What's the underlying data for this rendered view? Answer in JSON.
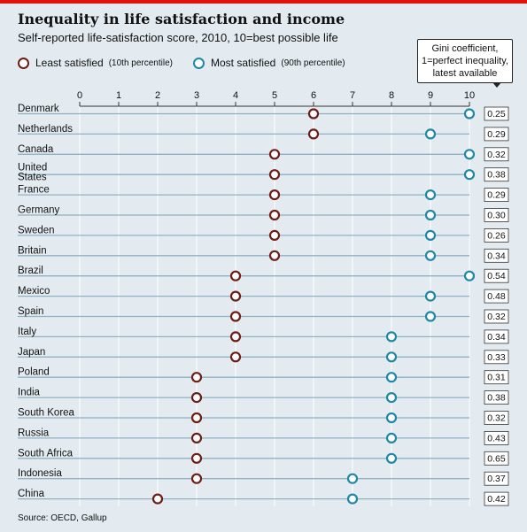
{
  "title": "Inequality in life satisfaction and income",
  "subtitle": "Self-reported life-satisfaction score, 2010, 10=best possible life",
  "legend": {
    "least": {
      "label": "Least satisfied",
      "note": "(10th percentile)"
    },
    "most": {
      "label": "Most satisfied",
      "note": "(90th percentile)"
    }
  },
  "gini_note": {
    "line1": "Gini coefficient,",
    "line2": "1=perfect inequality,",
    "line3": "latest available"
  },
  "source": "Source: OECD, Gallup",
  "colors": {
    "least": "#6b1d16",
    "most": "#1f87a6",
    "line": "#8fb1c3",
    "band": "#e3ebf0",
    "accent": "#e3120b"
  },
  "chart_data": {
    "type": "dot",
    "xlim": [
      0,
      10
    ],
    "xticks": [
      "0",
      "1",
      "2",
      "3",
      "4",
      "5",
      "6",
      "7",
      "8",
      "9",
      "10"
    ],
    "categories": [
      [
        "Denmark"
      ],
      [
        "Netherlands"
      ],
      [
        "Canada"
      ],
      [
        "United",
        "States"
      ],
      [
        "France"
      ],
      [
        "Germany"
      ],
      [
        "Sweden"
      ],
      [
        "Britain"
      ],
      [
        "Brazil"
      ],
      [
        "Mexico"
      ],
      [
        "Spain"
      ],
      [
        "Italy"
      ],
      [
        "Japan"
      ],
      [
        "Poland"
      ],
      [
        "India"
      ],
      [
        "South Korea"
      ],
      [
        "Russia"
      ],
      [
        "South Africa"
      ],
      [
        "Indonesia"
      ],
      [
        "China"
      ]
    ],
    "series": [
      {
        "name": "Least satisfied",
        "values": [
          6,
          6,
          5,
          5,
          5,
          5,
          5,
          5,
          4,
          4,
          4,
          4,
          4,
          3,
          3,
          3,
          3,
          3,
          3,
          2
        ]
      },
      {
        "name": "Most satisfied",
        "values": [
          10,
          9,
          10,
          10,
          9,
          9,
          9,
          9,
          10,
          9,
          9,
          8,
          8,
          8,
          8,
          8,
          8,
          8,
          7,
          7
        ]
      }
    ],
    "gini": [
      "0.25",
      "0.29",
      "0.32",
      "0.38",
      "0.29",
      "0.30",
      "0.26",
      "0.34",
      "0.54",
      "0.48",
      "0.32",
      "0.34",
      "0.33",
      "0.31",
      "0.38",
      "0.32",
      "0.43",
      "0.65",
      "0.37",
      "0.42"
    ]
  }
}
